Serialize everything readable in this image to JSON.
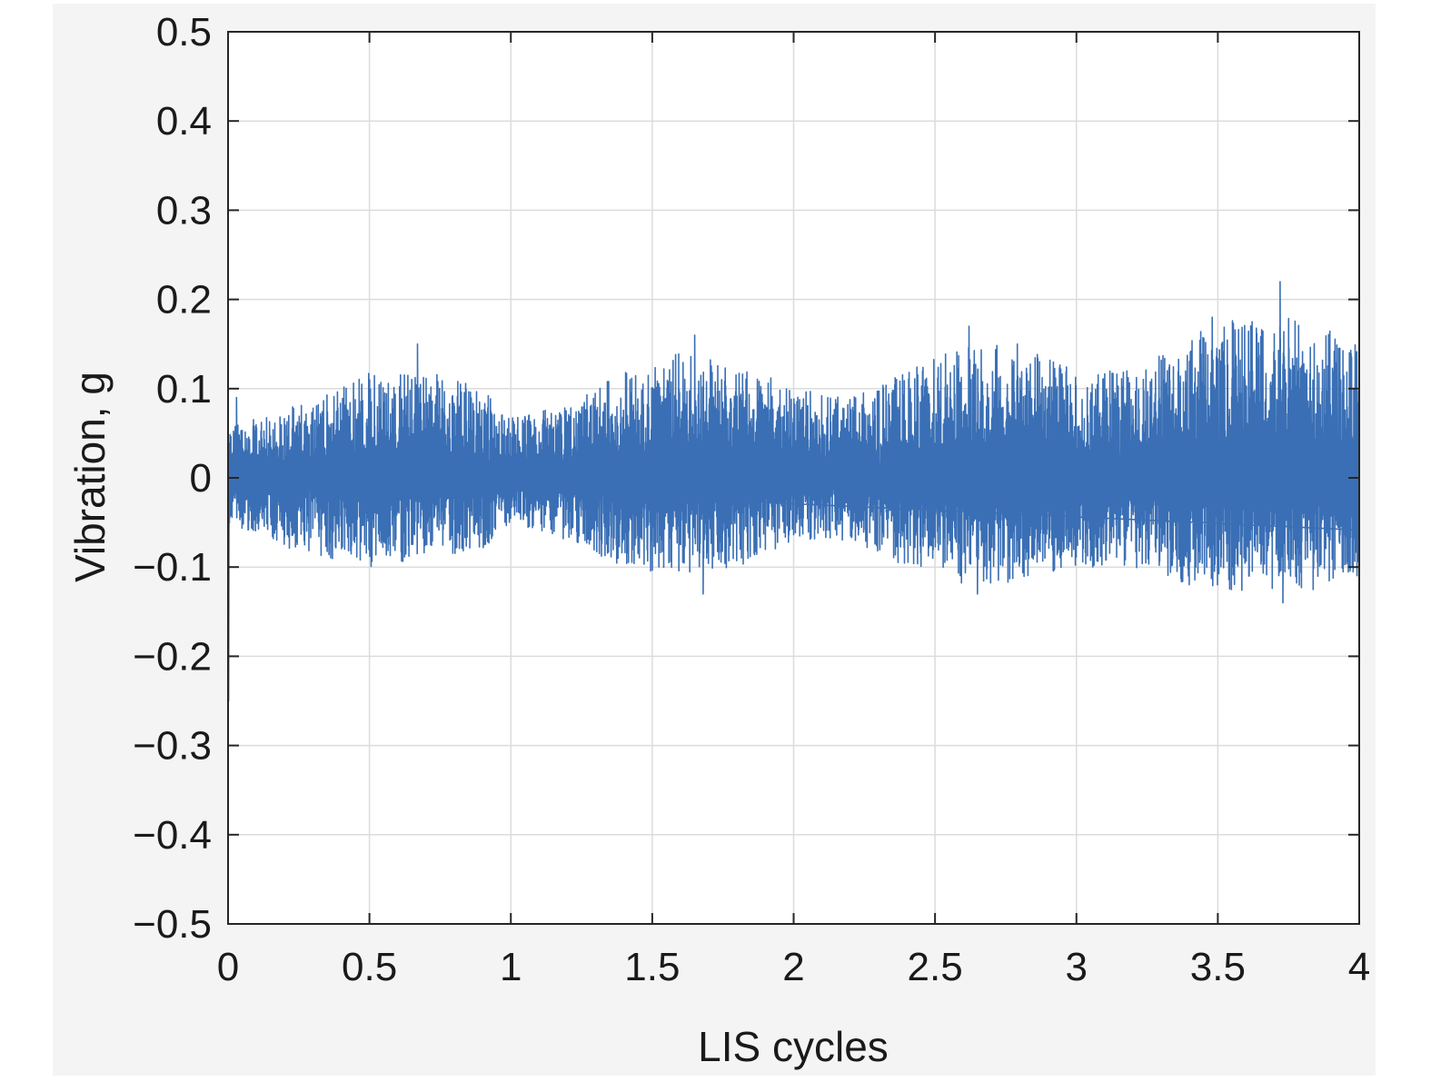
{
  "chart_data": {
    "type": "line",
    "title": "",
    "xlabel": "LIS cycles",
    "ylabel": "Vibration, g",
    "xlim": [
      0,
      4
    ],
    "ylim": [
      -0.5,
      0.5
    ],
    "grid": true,
    "legend": "none",
    "x_ticks": [
      0,
      0.5,
      1,
      1.5,
      2,
      2.5,
      3,
      3.5,
      4
    ],
    "y_ticks": [
      0.5,
      0.4,
      0.3,
      0.2,
      0.1,
      0,
      -0.1,
      -0.2,
      -0.3,
      -0.4,
      -0.5
    ],
    "x_tick_labels": [
      "0",
      "0.5",
      "1",
      "1.5",
      "2",
      "2.5",
      "3",
      "3.5",
      "4"
    ],
    "y_tick_labels": [
      "0.5",
      "0.4",
      "0.3",
      "0.2",
      "0.1",
      "0",
      "−0.1",
      "−0.2",
      "−0.3",
      "−0.4",
      "−0.5"
    ],
    "series": [
      {
        "color": "#3a6fb5",
        "signal": "dense oscillation around 0 with slowly varying envelope",
        "initial_spike": -0.25,
        "envelope": {
          "x": [
            0,
            0.15,
            0.3,
            0.5,
            0.7,
            0.9,
            1.0,
            1.2,
            1.4,
            1.6,
            1.8,
            2.0,
            2.2,
            2.4,
            2.6,
            2.8,
            3.0,
            3.2,
            3.4,
            3.6,
            3.8,
            4.0
          ],
          "upper": [
            0.06,
            0.07,
            0.09,
            0.12,
            0.12,
            0.1,
            0.07,
            0.08,
            0.12,
            0.14,
            0.13,
            0.1,
            0.09,
            0.12,
            0.15,
            0.15,
            0.12,
            0.12,
            0.16,
            0.19,
            0.18,
            0.15
          ],
          "lower": [
            -0.05,
            -0.07,
            -0.09,
            -0.1,
            -0.09,
            -0.08,
            -0.05,
            -0.07,
            -0.1,
            -0.11,
            -0.1,
            -0.07,
            -0.07,
            -0.1,
            -0.12,
            -0.12,
            -0.1,
            -0.1,
            -0.12,
            -0.13,
            -0.13,
            -0.11
          ]
        },
        "peaks": [
          {
            "x": 0.03,
            "y": 0.09
          },
          {
            "x": 0.67,
            "y": 0.15
          },
          {
            "x": 1.65,
            "y": 0.16
          },
          {
            "x": 1.68,
            "y": -0.13
          },
          {
            "x": 2.62,
            "y": 0.17
          },
          {
            "x": 2.65,
            "y": -0.13
          },
          {
            "x": 3.48,
            "y": 0.18
          },
          {
            "x": 3.72,
            "y": 0.22
          },
          {
            "x": 3.73,
            "y": -0.14
          }
        ]
      }
    ]
  }
}
